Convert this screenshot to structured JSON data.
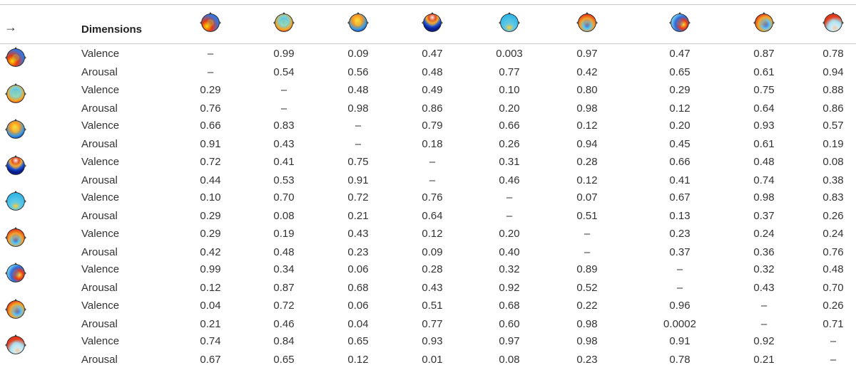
{
  "header": {
    "arrow": "→",
    "dimensions_label": "Dimensions",
    "column_maps": [
      {
        "icon": "scalp-map-1-icon"
      },
      {
        "icon": "scalp-map-2-icon"
      },
      {
        "icon": "scalp-map-3-icon"
      },
      {
        "icon": "scalp-map-4-icon"
      },
      {
        "icon": "scalp-map-5-icon"
      },
      {
        "icon": "scalp-map-6-icon"
      },
      {
        "icon": "scalp-map-7-icon"
      },
      {
        "icon": "scalp-map-8-icon"
      },
      {
        "icon": "scalp-map-9-icon"
      }
    ]
  },
  "rows": [
    {
      "map": "scalp-map-1-icon",
      "dims": [
        {
          "label": "Valence",
          "values": [
            "–",
            "0.99",
            "0.09",
            "0.47",
            "0.003",
            "0.97",
            "0.47",
            "0.87",
            "0.78"
          ]
        },
        {
          "label": "Arousal",
          "values": [
            "–",
            "0.54",
            "0.56",
            "0.48",
            "0.77",
            "0.42",
            "0.65",
            "0.61",
            "0.94"
          ]
        }
      ]
    },
    {
      "map": "scalp-map-2-icon",
      "dims": [
        {
          "label": "Valence",
          "values": [
            "0.29",
            "–",
            "0.48",
            "0.49",
            "0.10",
            "0.80",
            "0.29",
            "0.75",
            "0.88"
          ]
        },
        {
          "label": "Arousal",
          "values": [
            "0.76",
            "–",
            "0.98",
            "0.86",
            "0.20",
            "0.98",
            "0.12",
            "0.64",
            "0.86"
          ]
        }
      ]
    },
    {
      "map": "scalp-map-3-icon",
      "dims": [
        {
          "label": "Valence",
          "values": [
            "0.66",
            "0.83",
            "–",
            "0.79",
            "0.66",
            "0.12",
            "0.20",
            "0.93",
            "0.57"
          ]
        },
        {
          "label": "Arousal",
          "values": [
            "0.91",
            "0.43",
            "–",
            "0.18",
            "0.26",
            "0.94",
            "0.45",
            "0.61",
            "0.19"
          ]
        }
      ]
    },
    {
      "map": "scalp-map-4-icon",
      "dims": [
        {
          "label": "Valence",
          "values": [
            "0.72",
            "0.41",
            "0.75",
            "–",
            "0.31",
            "0.28",
            "0.66",
            "0.48",
            "0.08"
          ]
        },
        {
          "label": "Arousal",
          "values": [
            "0.44",
            "0.53",
            "0.91",
            "–",
            "0.46",
            "0.12",
            "0.41",
            "0.74",
            "0.38"
          ]
        }
      ]
    },
    {
      "map": "scalp-map-5-icon",
      "dims": [
        {
          "label": "Valence",
          "values": [
            "0.10",
            "0.70",
            "0.72",
            "0.76",
            "–",
            "0.07",
            "0.67",
            "0.98",
            "0.83"
          ]
        },
        {
          "label": "Arousal",
          "values": [
            "0.29",
            "0.08",
            "0.21",
            "0.64",
            "–",
            "0.51",
            "0.13",
            "0.37",
            "0.26"
          ]
        }
      ]
    },
    {
      "map": "scalp-map-6-icon",
      "dims": [
        {
          "label": "Valence",
          "values": [
            "0.29",
            "0.19",
            "0.43",
            "0.12",
            "0.20",
            "–",
            "0.23",
            "0.24",
            "0.24"
          ]
        },
        {
          "label": "Arousal",
          "values": [
            "0.42",
            "0.48",
            "0.23",
            "0.09",
            "0.40",
            "–",
            "0.37",
            "0.36",
            "0.76"
          ]
        }
      ]
    },
    {
      "map": "scalp-map-7-icon",
      "dims": [
        {
          "label": "Valence",
          "values": [
            "0.99",
            "0.34",
            "0.06",
            "0.28",
            "0.32",
            "0.89",
            "–",
            "0.32",
            "0.48"
          ]
        },
        {
          "label": "Arousal",
          "values": [
            "0.12",
            "0.87",
            "0.68",
            "0.43",
            "0.92",
            "0.52",
            "–",
            "0.43",
            "0.70"
          ]
        }
      ]
    },
    {
      "map": "scalp-map-8-icon",
      "dims": [
        {
          "label": "Valence",
          "values": [
            "0.04",
            "0.72",
            "0.06",
            "0.51",
            "0.68",
            "0.22",
            "0.96",
            "–",
            "0.26"
          ]
        },
        {
          "label": "Arousal",
          "values": [
            "0.21",
            "0.46",
            "0.04",
            "0.77",
            "0.60",
            "0.98",
            "0.0002",
            "–",
            "0.71"
          ]
        }
      ]
    },
    {
      "map": "scalp-map-9-icon",
      "dims": [
        {
          "label": "Valence",
          "values": [
            "0.74",
            "0.84",
            "0.65",
            "0.93",
            "0.97",
            "0.98",
            "0.91",
            "0.92",
            "–"
          ]
        },
        {
          "label": "Arousal",
          "values": [
            "0.67",
            "0.65",
            "0.12",
            "0.01",
            "0.08",
            "0.23",
            "0.78",
            "0.21",
            "–"
          ]
        }
      ]
    }
  ]
}
